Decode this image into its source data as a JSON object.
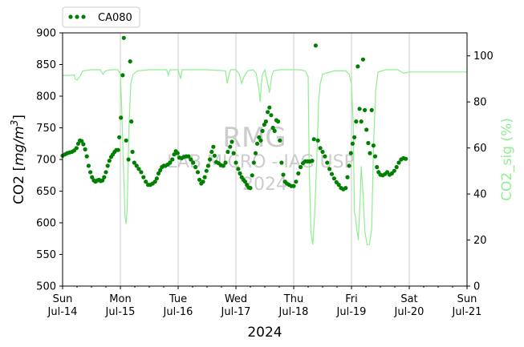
{
  "chart_data": {
    "type": "line",
    "xlabel": "2024",
    "ylabel_left_prefix": "CO2 [",
    "ylabel_left_unit": "mg/m",
    "ylabel_left_exp": "3",
    "ylabel_left_suffix": "]",
    "ylabel_right": "CO2_sig (%)",
    "ylim_left": [
      500,
      900
    ],
    "ylim_right": [
      0,
      110
    ],
    "xlim": [
      0,
      7
    ],
    "left_ticks": [
      500,
      550,
      600,
      650,
      700,
      750,
      800,
      850,
      900
    ],
    "right_ticks": [
      0,
      20,
      40,
      60,
      80,
      100
    ],
    "x_ticks": [
      {
        "day": "Sun",
        "date": "Jul-14"
      },
      {
        "day": "Mon",
        "date": "Jul-15"
      },
      {
        "day": "Tue",
        "date": "Jul-16"
      },
      {
        "day": "Wed",
        "date": "Jul-17"
      },
      {
        "day": "Thu",
        "date": "Jul-18"
      },
      {
        "day": "Fri",
        "date": "Jul-19"
      },
      {
        "day": "Sat",
        "date": "Jul-20"
      },
      {
        "day": "Sun",
        "date": "Jul-21"
      }
    ],
    "grid": "vertical at day boundaries",
    "legend_position": "top-left, above plot",
    "watermark": [
      "RMG",
      "LAB MICRO - IAG USP",
      "2024"
    ],
    "colors": {
      "co2": "#008000",
      "sig": "#90ee90"
    },
    "series": [
      {
        "name": "CA080",
        "axis": "left",
        "style": "dots",
        "points": [
          [
            0.0,
            706
          ],
          [
            0.04,
            708
          ],
          [
            0.08,
            710
          ],
          [
            0.12,
            711
          ],
          [
            0.16,
            712
          ],
          [
            0.2,
            714
          ],
          [
            0.24,
            718
          ],
          [
            0.27,
            725
          ],
          [
            0.3,
            730
          ],
          [
            0.33,
            729
          ],
          [
            0.36,
            724
          ],
          [
            0.39,
            716
          ],
          [
            0.42,
            705
          ],
          [
            0.45,
            690
          ],
          [
            0.48,
            680
          ],
          [
            0.51,
            672
          ],
          [
            0.54,
            667
          ],
          [
            0.57,
            665
          ],
          [
            0.6,
            667
          ],
          [
            0.63,
            668
          ],
          [
            0.66,
            666
          ],
          [
            0.69,
            667
          ],
          [
            0.72,
            672
          ],
          [
            0.75,
            680
          ],
          [
            0.78,
            690
          ],
          [
            0.81,
            698
          ],
          [
            0.84,
            704
          ],
          [
            0.87,
            708
          ],
          [
            0.9,
            712
          ],
          [
            0.93,
            715
          ],
          [
            0.96,
            715
          ],
          [
            0.98,
            735
          ],
          [
            1.01,
            766
          ],
          [
            1.04,
            833
          ],
          [
            1.06,
            892
          ],
          [
            1.1,
            730
          ],
          [
            1.14,
            700
          ],
          [
            1.17,
            855
          ],
          [
            1.19,
            760
          ],
          [
            1.21,
            712
          ],
          [
            1.24,
            695
          ],
          [
            1.28,
            690
          ],
          [
            1.32,
            685
          ],
          [
            1.36,
            680
          ],
          [
            1.4,
            672
          ],
          [
            1.44,
            665
          ],
          [
            1.48,
            660
          ],
          [
            1.52,
            660
          ],
          [
            1.56,
            662
          ],
          [
            1.6,
            665
          ],
          [
            1.63,
            670
          ],
          [
            1.66,
            678
          ],
          [
            1.69,
            683
          ],
          [
            1.72,
            688
          ],
          [
            1.75,
            690
          ],
          [
            1.78,
            690
          ],
          [
            1.82,
            692
          ],
          [
            1.86,
            695
          ],
          [
            1.9,
            700
          ],
          [
            1.93,
            708
          ],
          [
            1.96,
            713
          ],
          [
            1.99,
            710
          ],
          [
            2.02,
            703
          ],
          [
            2.06,
            702
          ],
          [
            2.1,
            704
          ],
          [
            2.14,
            705
          ],
          [
            2.18,
            705
          ],
          [
            2.22,
            700
          ],
          [
            2.26,
            695
          ],
          [
            2.3,
            688
          ],
          [
            2.34,
            680
          ],
          [
            2.37,
            668
          ],
          [
            2.4,
            662
          ],
          [
            2.43,
            665
          ],
          [
            2.46,
            672
          ],
          [
            2.49,
            682
          ],
          [
            2.52,
            690
          ],
          [
            2.55,
            700
          ],
          [
            2.58,
            712
          ],
          [
            2.61,
            720
          ],
          [
            2.63,
            706
          ],
          [
            2.66,
            696
          ],
          [
            2.7,
            694
          ],
          [
            2.74,
            691
          ],
          [
            2.78,
            690
          ],
          [
            2.82,
            695
          ],
          [
            2.86,
            712
          ],
          [
            2.9,
            720
          ],
          [
            2.93,
            728
          ],
          [
            2.96,
            710
          ],
          [
            3.0,
            695
          ],
          [
            3.04,
            685
          ],
          [
            3.07,
            678
          ],
          [
            3.1,
            672
          ],
          [
            3.13,
            668
          ],
          [
            3.16,
            665
          ],
          [
            3.19,
            660
          ],
          [
            3.22,
            656
          ],
          [
            3.25,
            655
          ],
          [
            3.28,
            675
          ],
          [
            3.31,
            695
          ],
          [
            3.34,
            710
          ],
          [
            3.37,
            725
          ],
          [
            3.4,
            735
          ],
          [
            3.43,
            730
          ],
          [
            3.46,
            745
          ],
          [
            3.49,
            755
          ],
          [
            3.52,
            760
          ],
          [
            3.55,
            775
          ],
          [
            3.58,
            782
          ],
          [
            3.61,
            770
          ],
          [
            3.64,
            750
          ],
          [
            3.67,
            745
          ],
          [
            3.7,
            762
          ],
          [
            3.73,
            760
          ],
          [
            3.76,
            730
          ],
          [
            3.79,
            695
          ],
          [
            3.82,
            676
          ],
          [
            3.85,
            665
          ],
          [
            3.88,
            662
          ],
          [
            3.92,
            660
          ],
          [
            3.96,
            658
          ],
          [
            4.0,
            658
          ],
          [
            4.04,
            665
          ],
          [
            4.08,
            678
          ],
          [
            4.12,
            688
          ],
          [
            4.16,
            694
          ],
          [
            4.2,
            697
          ],
          [
            4.24,
            697
          ],
          [
            4.28,
            697
          ],
          [
            4.32,
            698
          ],
          [
            4.35,
            732
          ],
          [
            4.38,
            880
          ],
          [
            4.42,
            730
          ],
          [
            4.46,
            718
          ],
          [
            4.5,
            712
          ],
          [
            4.54,
            705
          ],
          [
            4.58,
            695
          ],
          [
            4.62,
            685
          ],
          [
            4.66,
            677
          ],
          [
            4.7,
            670
          ],
          [
            4.74,
            664
          ],
          [
            4.78,
            660
          ],
          [
            4.82,
            655
          ],
          [
            4.86,
            653
          ],
          [
            4.9,
            655
          ],
          [
            4.93,
            672
          ],
          [
            4.96,
            690
          ],
          [
            4.99,
            710
          ],
          [
            5.02,
            725
          ],
          [
            5.05,
            735
          ],
          [
            5.08,
            760
          ],
          [
            5.11,
            847
          ],
          [
            5.14,
            780
          ],
          [
            5.17,
            760
          ],
          [
            5.2,
            858
          ],
          [
            5.23,
            778
          ],
          [
            5.26,
            747
          ],
          [
            5.29,
            726
          ],
          [
            5.32,
            710
          ],
          [
            5.35,
            778
          ],
          [
            5.38,
            722
          ],
          [
            5.41,
            705
          ],
          [
            5.44,
            688
          ],
          [
            5.47,
            680
          ],
          [
            5.5,
            676
          ],
          [
            5.54,
            675
          ],
          [
            5.58,
            677
          ],
          [
            5.62,
            680
          ],
          [
            5.66,
            676
          ],
          [
            5.7,
            678
          ],
          [
            5.74,
            682
          ],
          [
            5.78,
            688
          ],
          [
            5.82,
            695
          ],
          [
            5.86,
            700
          ],
          [
            5.9,
            702
          ],
          [
            5.94,
            701
          ]
        ]
      },
      {
        "name": "",
        "axis": "right",
        "style": "line",
        "points": [
          [
            0.0,
            91.5
          ],
          [
            0.1,
            91.5
          ],
          [
            0.2,
            91.7
          ],
          [
            0.22,
            90.0
          ],
          [
            0.25,
            89.5
          ],
          [
            0.3,
            91.0
          ],
          [
            0.35,
            93.5
          ],
          [
            0.5,
            94.0
          ],
          [
            0.65,
            94.0
          ],
          [
            0.7,
            92.0
          ],
          [
            0.74,
            93.5
          ],
          [
            0.85,
            94.0
          ],
          [
            0.96,
            94.0
          ],
          [
            1.0,
            92.0
          ],
          [
            1.02,
            80.0
          ],
          [
            1.05,
            55.0
          ],
          [
            1.08,
            30.0
          ],
          [
            1.1,
            27.0
          ],
          [
            1.12,
            35.0
          ],
          [
            1.15,
            70.0
          ],
          [
            1.18,
            88.0
          ],
          [
            1.22,
            92.0
          ],
          [
            1.3,
            93.5
          ],
          [
            1.5,
            94.0
          ],
          [
            1.8,
            94.0
          ],
          [
            1.83,
            91.5
          ],
          [
            1.86,
            94.0
          ],
          [
            2.0,
            94.0
          ],
          [
            2.04,
            90.0
          ],
          [
            2.07,
            94.0
          ],
          [
            2.2,
            94.0
          ],
          [
            2.5,
            94.0
          ],
          [
            2.82,
            93.5
          ],
          [
            2.85,
            88.0
          ],
          [
            2.88,
            92.0
          ],
          [
            2.91,
            94.0
          ],
          [
            3.0,
            94.0
          ],
          [
            3.06,
            92.0
          ],
          [
            3.1,
            88.0
          ],
          [
            3.14,
            91.0
          ],
          [
            3.2,
            93.5
          ],
          [
            3.3,
            94.0
          ],
          [
            3.35,
            92.5
          ],
          [
            3.4,
            85.0
          ],
          [
            3.42,
            80.0
          ],
          [
            3.44,
            88.0
          ],
          [
            3.46,
            92.0
          ],
          [
            3.5,
            94.0
          ],
          [
            3.55,
            88.0
          ],
          [
            3.58,
            84.0
          ],
          [
            3.62,
            91.0
          ],
          [
            3.65,
            93.5
          ],
          [
            3.75,
            94.0
          ],
          [
            3.9,
            94.0
          ],
          [
            4.1,
            94.0
          ],
          [
            4.2,
            93.5
          ],
          [
            4.25,
            91.0
          ],
          [
            4.27,
            50.0
          ],
          [
            4.3,
            23.0
          ],
          [
            4.33,
            18.0
          ],
          [
            4.36,
            30.0
          ],
          [
            4.4,
            55.0
          ],
          [
            4.43,
            80.0
          ],
          [
            4.46,
            88.0
          ],
          [
            4.5,
            92.0
          ],
          [
            4.7,
            93.5
          ],
          [
            4.9,
            93.5
          ],
          [
            4.96,
            92.0
          ],
          [
            5.0,
            88.0
          ],
          [
            5.03,
            70.0
          ],
          [
            5.05,
            32.0
          ],
          [
            5.07,
            30.0
          ],
          [
            5.09,
            25.0
          ],
          [
            5.12,
            20.0
          ],
          [
            5.15,
            38.0
          ],
          [
            5.17,
            52.0
          ],
          [
            5.2,
            40.0
          ],
          [
            5.23,
            24.0
          ],
          [
            5.27,
            18.0
          ],
          [
            5.31,
            18.0
          ],
          [
            5.35,
            25.0
          ],
          [
            5.38,
            60.0
          ],
          [
            5.42,
            85.0
          ],
          [
            5.46,
            93.0
          ],
          [
            5.6,
            94.0
          ],
          [
            5.8,
            94.0
          ],
          [
            5.9,
            92.5
          ],
          [
            6.0,
            93.0
          ],
          [
            6.5,
            93.0
          ],
          [
            7.0,
            93.0
          ]
        ]
      }
    ]
  }
}
